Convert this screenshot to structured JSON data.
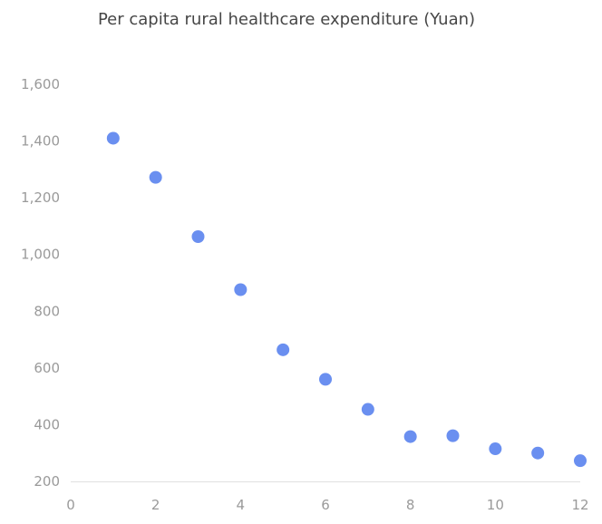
{
  "chart_data": {
    "type": "scatter",
    "title": "Per capita rural healthcare expenditure (Yuan)",
    "xlabel": "",
    "ylabel": "",
    "xlim": [
      0,
      12
    ],
    "ylim": [
      200,
      1600
    ],
    "x_ticks": [
      0,
      2,
      4,
      6,
      8,
      10,
      12
    ],
    "y_ticks": [
      200,
      400,
      600,
      800,
      1000,
      1200,
      1400,
      1600
    ],
    "grid": false,
    "legend": "none",
    "point_color": "#6a8ff0",
    "points": [
      {
        "x": 1,
        "y": 1410
      },
      {
        "x": 2,
        "y": 1272
      },
      {
        "x": 3,
        "y": 1063
      },
      {
        "x": 4,
        "y": 876
      },
      {
        "x": 5,
        "y": 664
      },
      {
        "x": 6,
        "y": 560
      },
      {
        "x": 7,
        "y": 454
      },
      {
        "x": 8,
        "y": 358
      },
      {
        "x": 9,
        "y": 361
      },
      {
        "x": 10,
        "y": 315
      },
      {
        "x": 11,
        "y": 300
      },
      {
        "x": 12,
        "y": 273
      }
    ]
  }
}
